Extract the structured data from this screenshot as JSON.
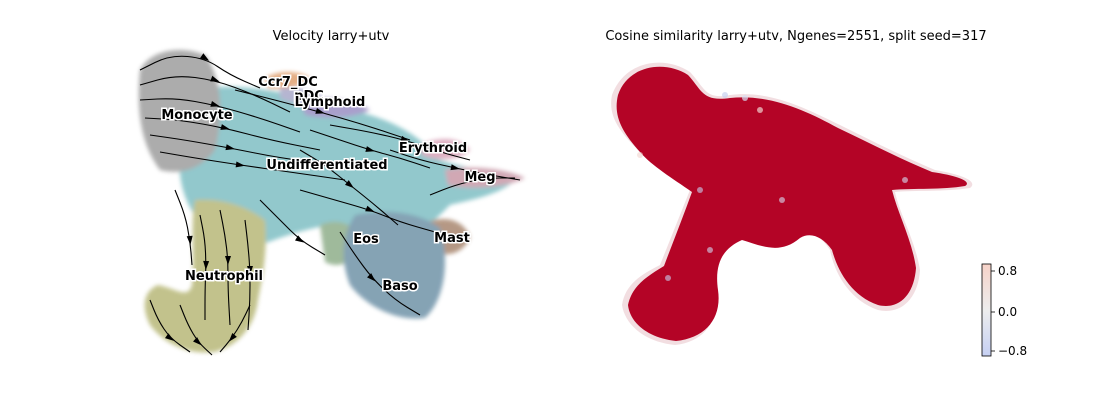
{
  "chart_data": [
    {
      "type": "scatter",
      "title": "Velocity larry+utv",
      "xlabel": "",
      "ylabel": "",
      "axes": "off",
      "grid": false,
      "overlay": "velocity streamlines",
      "clusters": [
        {
          "name": "Ccr7_DC",
          "label": "Ccr7_DC",
          "color": "#e0a070"
        },
        {
          "name": "pDC",
          "label": "pDC",
          "color": "#a9a9c9"
        },
        {
          "name": "Lymphoid",
          "label": "Lymphoid",
          "color": "#9b8fc4"
        },
        {
          "name": "Monocyte",
          "label": "Monocyte",
          "color": "#9e9e9e"
        },
        {
          "name": "Undifferentiated",
          "label": "Undifferentiated",
          "color": "#7fbfc4"
        },
        {
          "name": "Erythroid",
          "label": "Erythroid",
          "color": "#d9a3b8"
        },
        {
          "name": "Meg",
          "label": "Meg",
          "color": "#c99aa8"
        },
        {
          "name": "Eos",
          "label": "Eos",
          "color": "#8fae8a"
        },
        {
          "name": "Mast",
          "label": "Mast",
          "color": "#a98770"
        },
        {
          "name": "Baso",
          "label": "Baso",
          "color": "#6f93a8"
        },
        {
          "name": "Neutrophil",
          "label": "Neutrophil",
          "color": "#b8b878"
        }
      ]
    },
    {
      "type": "scatter",
      "title": "Cosine similarity larry+utv, Ngenes=2551, split seed=317",
      "xlabel": "",
      "ylabel": "",
      "axes": "off",
      "grid": false,
      "color_encoding": "cosine similarity",
      "dominant_value": 0.95,
      "colorbar": {
        "ticks": [
          0.8,
          0.0,
          -0.8
        ],
        "tick_labels": [
          "0.8",
          "0.0",
          "−0.8"
        ],
        "range": [
          -1.0,
          1.0
        ],
        "colormap": "coolwarm"
      }
    }
  ],
  "colors": {
    "high": "#b40426",
    "mid": "#dddddd",
    "low": "#3b4cc0",
    "stream": "#000000"
  }
}
